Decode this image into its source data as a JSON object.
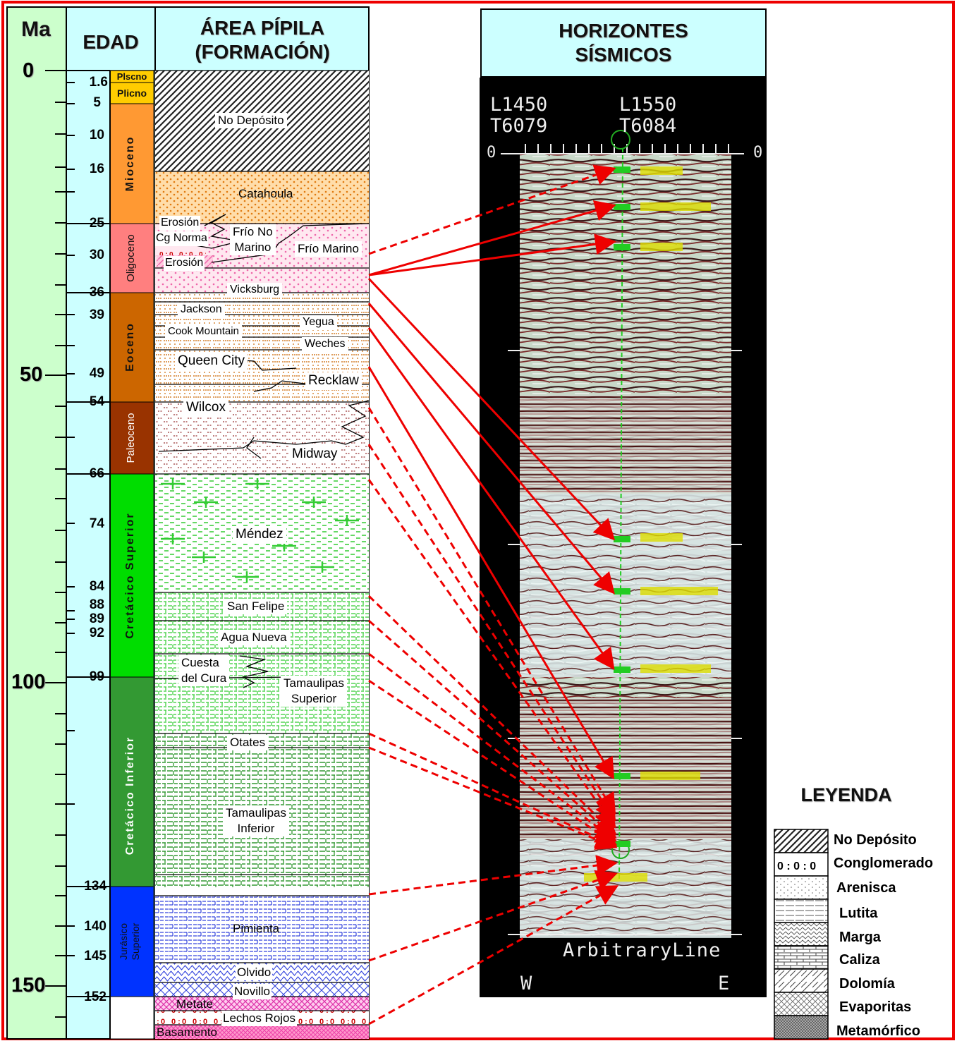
{
  "headers": {
    "ma": "Ma",
    "edad": "EDAD",
    "formacion": "ÁREA PÍPILA\n(FORMACIÓN)",
    "horizontes": "HORIZONTES\nSÍSMICOS"
  },
  "ma_scale": [
    "0",
    "50",
    "100",
    "150"
  ],
  "age_ticks": [
    "1.6",
    "5",
    "10",
    "16",
    "25",
    "30",
    "36",
    "39",
    "49",
    "54",
    "66",
    "74",
    "84",
    "88",
    "89",
    "92",
    "99",
    "134",
    "140",
    "145",
    "152"
  ],
  "epochs": [
    "Plscno",
    "Plicno",
    "Mioceno",
    "Oligoceno",
    "Eoceno",
    "Paleoceno",
    "Cretácico Superior",
    "Cretácico Inferior",
    "Jurásico\nSuperior"
  ],
  "formations": [
    "No Depósito",
    "Catahoula",
    "Erosión",
    "Cg Norma",
    "Frío No\nMarino",
    "Frío Marino",
    "Erosión",
    "Vicksburg",
    "Jackson",
    "Yegua",
    "Cook Mountain",
    "Weches",
    "Queen City",
    "Recklaw",
    "Wilcox",
    "Midway",
    "Méndez",
    "San Felipe",
    "Agua Nueva",
    "Cuesta\ndel Cura",
    "Tamaulipas\nSuperior",
    "Otates",
    "Tamaulipas\nInferior",
    "Pimienta",
    "Olvido",
    "Novillo",
    "Metate",
    "Lechos Rojos",
    "Basamento"
  ],
  "seismic": {
    "line_left": "L1450\nT6079",
    "line_right": "L1550\nT6084",
    "top_left_value": "0",
    "top_right_value": "0",
    "bottom_label": "ArbitraryLine",
    "west": "W",
    "east": "E"
  },
  "legend": {
    "title": "LEYENDA",
    "items": [
      "No Depósito",
      "Conglomerado",
      "Arenisca",
      "Lutita",
      "Marga",
      "Caliza",
      "Dolomía",
      "Evaporitas",
      "Metamórfico"
    ]
  },
  "colors": {
    "frame": "#ee0000",
    "ma_column": "#ccffcc",
    "edad_column": "#ccffff",
    "pleistoceno": "#ffcc00",
    "mioceno": "#ff9933",
    "oligoceno": "#ff7f7f",
    "eoceno": "#cc6600",
    "paleoceno": "#993300",
    "cretacico_superior": "#00dd00",
    "cretacico_inferior": "#339933",
    "jurasico_superior": "#0033ff"
  }
}
